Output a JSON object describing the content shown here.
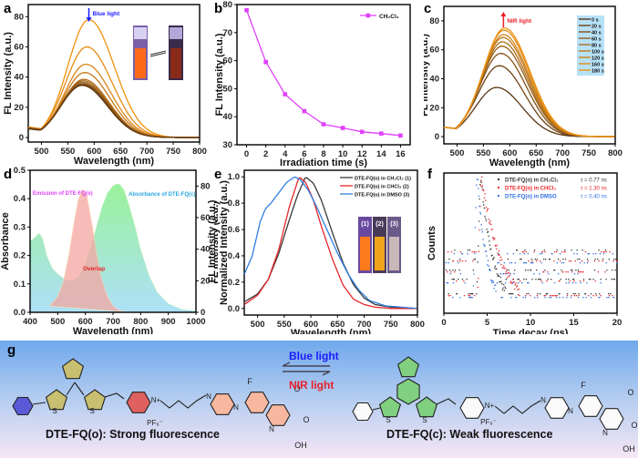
{
  "figure": {
    "panel_labels": [
      "a",
      "b",
      "c",
      "d",
      "e",
      "f",
      "g"
    ]
  },
  "chart_data": [
    {
      "id": "a",
      "type": "line",
      "title": "",
      "xlabel": "Wavelength (nm)",
      "ylabel": "FL Intensity (a.u.)",
      "xlim": [
        475,
        800
      ],
      "ylim": [
        -3,
        88
      ],
      "xticks": [
        500,
        550,
        600,
        650,
        700,
        750,
        800
      ],
      "yticks": [
        0,
        20,
        40,
        60,
        80
      ],
      "annotation": "Blue light",
      "annotation_color": "#1a1aff",
      "series_peaks": [
        78,
        60,
        48.5,
        43,
        38.5,
        37.5,
        36.5,
        35.5,
        35,
        34.5
      ],
      "series_peak_wavelengths": [
        590,
        586,
        584,
        582,
        580,
        579,
        578,
        578,
        577,
        577
      ],
      "series_colors": [
        "#f0900a",
        "#e68a12",
        "#d98416",
        "#c97a18",
        "#b56e1a",
        "#a4641a",
        "#935a18",
        "#834f16",
        "#734514",
        "#633a12"
      ],
      "inset": "vials photo (bright orange → dark)"
    },
    {
      "id": "b",
      "type": "line",
      "title": "",
      "xlabel": "Irradiation time (s)",
      "ylabel": "FL Intensity (a.u.)",
      "xlim": [
        -1,
        17
      ],
      "ylim": [
        30,
        80
      ],
      "xticks": [
        0,
        2,
        4,
        6,
        8,
        10,
        12,
        14,
        16
      ],
      "yticks": [
        30,
        40,
        50,
        60,
        70,
        80
      ],
      "legend": "top-right",
      "series": [
        {
          "name": "CH2Cl2",
          "color": "#e040fb",
          "x": [
            0,
            2,
            4,
            6,
            8,
            10,
            12,
            14,
            16
          ],
          "values": [
            78,
            59.5,
            48,
            42,
            37.3,
            36,
            34.6,
            34,
            33.3
          ]
        }
      ]
    },
    {
      "id": "c",
      "type": "line",
      "title": "",
      "xlabel": "Wavelength (nm)",
      "ylabel": "FL Intensity (a.u.)",
      "xlim": [
        475,
        800
      ],
      "ylim": [
        -5,
        90
      ],
      "xticks": [
        500,
        550,
        600,
        650,
        700,
        750,
        800
      ],
      "yticks": [
        0,
        20,
        40,
        60,
        80
      ],
      "annotation": "NIR light",
      "annotation_color": "#e8202a",
      "legend": "top-right",
      "series": [
        {
          "name": "0 s",
          "peak": 34,
          "peak_wl": 575,
          "color": "#5a3410"
        },
        {
          "name": "20 s",
          "peak": 49,
          "peak_wl": 580,
          "color": "#6e4212"
        },
        {
          "name": "40 s",
          "peak": 57.5,
          "peak_wl": 583,
          "color": "#835016"
        },
        {
          "name": "60 s",
          "peak": 62.5,
          "peak_wl": 585,
          "color": "#975e18"
        },
        {
          "name": "80 s",
          "peak": 65.5,
          "peak_wl": 586,
          "color": "#ab6c18"
        },
        {
          "name": "100 s",
          "peak": 68.5,
          "peak_wl": 587,
          "color": "#bf7818"
        },
        {
          "name": "120 s",
          "peak": 70.5,
          "peak_wl": 588,
          "color": "#d08216"
        },
        {
          "name": "160 s",
          "peak": 73.5,
          "peak_wl": 589,
          "color": "#e08a14"
        },
        {
          "name": "180 s",
          "peak": 75,
          "peak_wl": 590,
          "color": "#f09212"
        }
      ]
    },
    {
      "id": "d",
      "type": "area",
      "title": "",
      "xlabel": "Wavelength (nm)",
      "ylabel": "Absorbance",
      "ylabel_right": "FL Intensity (a.u.)",
      "xlim": [
        400,
        1000
      ],
      "ylim": [
        0,
        0.5
      ],
      "ylim_right": [
        0,
        90
      ],
      "xticks": [
        400,
        500,
        600,
        700,
        800,
        900,
        1000
      ],
      "yticks": [
        0.0,
        0.1,
        0.2,
        0.3,
        0.4,
        0.5
      ],
      "yticks_right": [
        0,
        20,
        40,
        60,
        80
      ],
      "annotations": [
        {
          "text": "Emission of DTE-FQ(o)",
          "color": "#e040fb"
        },
        {
          "text": "Absorbance of DTE-FQ(c)",
          "color": "#29a8e0"
        },
        {
          "text": "Overlap",
          "color": "#e8202a"
        }
      ],
      "series": [
        {
          "name": "Absorbance of DTE-FQ(c)",
          "axis": "left",
          "x": [
            400,
            420,
            432,
            445,
            460,
            480,
            500,
            520,
            540,
            560,
            580,
            600,
            620,
            640,
            660,
            680,
            700,
            715,
            725,
            740,
            760,
            780,
            800,
            830,
            860,
            900,
            950,
            1000
          ],
          "values": [
            0.25,
            0.265,
            0.28,
            0.26,
            0.2,
            0.155,
            0.135,
            0.12,
            0.11,
            0.115,
            0.13,
            0.17,
            0.23,
            0.3,
            0.37,
            0.42,
            0.445,
            0.452,
            0.45,
            0.43,
            0.37,
            0.3,
            0.22,
            0.13,
            0.07,
            0.03,
            0.01,
            0.005
          ]
        },
        {
          "name": "Emission of DTE-FQ(o)",
          "axis": "right",
          "x": [
            470,
            500,
            520,
            540,
            560,
            575,
            590,
            605,
            620,
            640,
            660,
            680,
            700,
            720,
            740
          ],
          "values": [
            4,
            10,
            19,
            36,
            58,
            72,
            78,
            74,
            60,
            38,
            20,
            10,
            4,
            1.5,
            0.5
          ]
        }
      ]
    },
    {
      "id": "e",
      "type": "line",
      "title": "",
      "xlabel": "Wavelength (nm)",
      "ylabel": "Normalized Intensity (a.u.)",
      "ylabel_back": "FL Intensity (a.u.)",
      "xlim": [
        475,
        800
      ],
      "ylim": [
        -0.05,
        1.05
      ],
      "xticks": [
        500,
        550,
        600,
        650,
        700,
        750,
        800
      ],
      "yticks": [
        0.0,
        0.2,
        0.4,
        0.6,
        0.8,
        1.0
      ],
      "legend": "top-right",
      "inset": "vials photo labelled (1) (2) (3)",
      "inset_labels": [
        "(1)",
        "(2)",
        "(3)"
      ],
      "series": [
        {
          "name": "DTE-FQ(o) in CH2Cl2 (1)",
          "color": "#3a3a3a",
          "x": [
            475,
            500,
            520,
            540,
            560,
            575,
            590,
            605,
            620,
            640,
            660,
            680,
            700,
            720,
            750,
            800
          ],
          "values": [
            0.05,
            0.11,
            0.22,
            0.42,
            0.68,
            0.86,
            1.0,
            0.95,
            0.82,
            0.58,
            0.35,
            0.18,
            0.08,
            0.03,
            0.01,
            0.0
          ]
        },
        {
          "name": "DTE-FQ(o) in CHCl3 (2)",
          "color": "#e8262a",
          "x": [
            475,
            500,
            520,
            540,
            560,
            578,
            590,
            605,
            620,
            640,
            660,
            680,
            700,
            720,
            750,
            800
          ],
          "values": [
            0.03,
            0.1,
            0.22,
            0.45,
            0.78,
            1.0,
            0.96,
            0.82,
            0.62,
            0.38,
            0.18,
            0.07,
            0.03,
            0.01,
            0.0,
            0.0
          ]
        },
        {
          "name": "DTE-FQ(o) in DMSO (3)",
          "color": "#2f7fe0",
          "x": [
            475,
            490,
            505,
            515,
            525,
            540,
            555,
            570,
            580,
            595,
            610,
            630,
            650,
            670,
            690,
            710,
            740,
            800
          ],
          "values": [
            0.26,
            0.4,
            0.66,
            0.76,
            0.8,
            0.88,
            0.96,
            1.0,
            0.98,
            0.9,
            0.78,
            0.6,
            0.42,
            0.26,
            0.14,
            0.06,
            0.02,
            0.0
          ]
        }
      ]
    },
    {
      "id": "f",
      "type": "scatter",
      "title": "",
      "xlabel": "Time decay (ns)",
      "ylabel": "Counts",
      "xlim": [
        0,
        20
      ],
      "xticks": [
        0,
        5,
        10,
        15,
        20
      ],
      "legend": "top-right",
      "series": [
        {
          "name": "DTE-FQ(o) in CH2Cl2",
          "tau": "τ = 0.77 ns",
          "color": "#333333",
          "peak_time": 4.2,
          "decay": 1.6
        },
        {
          "name": "DTE-FQ(o) in CHCl3",
          "tau": "τ = 1.30 ns",
          "color": "#e8262a",
          "peak_time": 4.3,
          "decay": 2.4
        },
        {
          "name": "DTE-FQ(o) in DMSO",
          "tau": "τ = 0.40 ns",
          "color": "#2f6fe0",
          "peak_time": 3.8,
          "decay": 1.2
        }
      ]
    }
  ],
  "scheme": {
    "left_caption": "DTE-FQ(o): Strong fluorescence",
    "right_caption": "DTE-FQ(c): Weak fluorescence",
    "arrow_top": "Blue light",
    "arrow_bottom": "NIR light",
    "counterion": "PF6-",
    "atoms": {
      "S": "S",
      "N_plus": "N+",
      "N": "N",
      "F": "F",
      "O": "O",
      "OH": "OH"
    }
  }
}
